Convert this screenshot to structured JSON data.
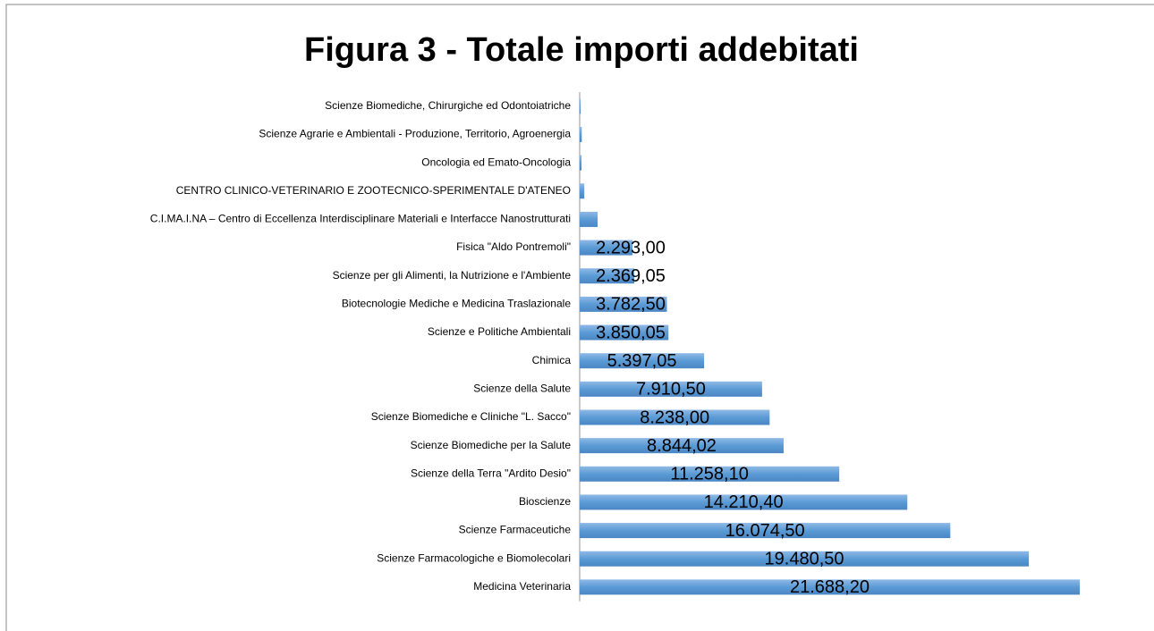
{
  "chart_data": {
    "type": "bar",
    "orientation": "horizontal",
    "title": "Figura 3 - Totale importi addebitati",
    "categories": [
      "Scienze Biomediche, Chirurgiche ed Odontoiatriche",
      "Scienze Agrarie e Ambientali - Produzione, Territorio, Agroenergia",
      "Oncologia ed Emato-Oncologia",
      "CENTRO CLINICO-VETERINARIO E ZOOTECNICO-SPERIMENTALE D'ATENEO",
      "C.I.MA.I.NA – Centro di Eccellenza Interdisciplinare Materiali e Interfacce Nanostrutturati",
      "Fisica \"Aldo Pontremoli\"",
      "Scienze per gli Alimenti, la Nutrizione e l'Ambiente",
      "Biotecnologie Mediche e Medicina Traslazionale",
      "Scienze e Politiche Ambientali",
      "Chimica",
      "Scienze della Salute",
      "Scienze Biomediche e Cliniche \"L. Sacco\"",
      "Scienze Biomediche per la Salute",
      "Scienze della Terra \"Ardito Desio\"",
      "Bioscienze",
      "Scienze Farmaceutiche",
      "Scienze Farmacologiche e Biomolecolari",
      "Medicina Veterinaria"
    ],
    "values": [
      40,
      90,
      80,
      200,
      780,
      2293,
      2369.05,
      3782.5,
      3850.05,
      5397.05,
      7910.5,
      8238,
      8844.02,
      11258.1,
      14210.4,
      16074.5,
      19480.5,
      21688.2
    ],
    "value_labels": [
      null,
      null,
      null,
      null,
      null,
      "2.293,00",
      "2.369,05",
      "3.782,50",
      "3.850,05",
      "5.397,05",
      "7.910,50",
      "8.238,00",
      "8.844,02",
      "11.258,10",
      "14.210,40",
      "16.074,50",
      "19.480,50",
      "21.688,20"
    ],
    "color": "#5b9bd5"
  }
}
